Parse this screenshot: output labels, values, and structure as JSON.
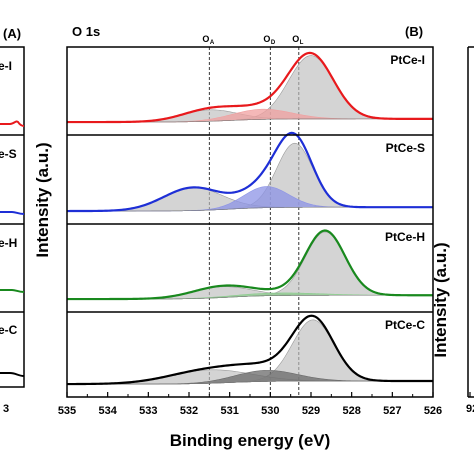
{
  "figure": {
    "left_panel": {
      "panel_letter": "(A)",
      "sample_labels": [
        "e-I",
        "e-S",
        "e-H",
        "e-C"
      ],
      "x_tick_partial": "3"
    },
    "right_panel": {
      "panel_letter": "(B)",
      "x_tick_partial": "92",
      "ylabel": "Intensity (a.u.)"
    }
  },
  "chart_data": {
    "type": "line",
    "title": "O 1s",
    "panel_letter": "(B)",
    "xlabel": "Binding energy (eV)",
    "ylabel": "Intensity (a.u.)",
    "xlim": [
      535,
      526
    ],
    "x_reversed": true,
    "x_ticks": [
      "535",
      "534",
      "533",
      "532",
      "531",
      "530",
      "529",
      "528",
      "527",
      "526"
    ],
    "y_ticks_shown": false,
    "reference_lines": [
      {
        "label_main": "O",
        "label_sub": "A",
        "x": 531.5,
        "style": "dashed"
      },
      {
        "label_main": "O",
        "label_sub": "D",
        "x": 530.0,
        "style": "dashed"
      },
      {
        "label_main": "O",
        "label_sub": "L",
        "x": 529.3,
        "style": "dashed"
      }
    ],
    "series": [
      {
        "name": "PtCe-I",
        "color": "#e8191c",
        "fill_color": "#f0a0a0",
        "baseline": 0.05,
        "scale": 0.72,
        "peaks": [
          {
            "center": 529.0,
            "fwhm": 1.3,
            "height": 1.0
          },
          {
            "center": 531.5,
            "fwhm": 1.6,
            "height": 0.18
          },
          {
            "center": 530.2,
            "fwhm": 1.7,
            "height": 0.16
          }
        ],
        "colored_component": 2
      },
      {
        "name": "PtCe-S",
        "color": "#1e2fd6",
        "fill_color": "#8c93e6",
        "baseline": 0.06,
        "scale": 0.72,
        "peaks": [
          {
            "center": 529.4,
            "fwhm": 1.05,
            "height": 1.0
          },
          {
            "center": 531.9,
            "fwhm": 1.7,
            "height": 0.36
          },
          {
            "center": 530.1,
            "fwhm": 1.3,
            "height": 0.33
          }
        ],
        "colored_component": 2
      },
      {
        "name": "PtCe-H",
        "color": "#19891e",
        "fill_color": "#8ccc8e",
        "baseline": 0.06,
        "scale": 0.72,
        "peaks": [
          {
            "center": 528.65,
            "fwhm": 1.15,
            "height": 1.0
          },
          {
            "center": 531.2,
            "fwhm": 1.7,
            "height": 0.17
          },
          {
            "center": 529.8,
            "fwhm": 2.4,
            "height": 0.04
          }
        ],
        "colored_component": 2
      },
      {
        "name": "PtCe-C",
        "color": "#000000",
        "fill_color": "#6a6a6a",
        "baseline": 0.05,
        "scale": 0.72,
        "peaks": [
          {
            "center": 528.95,
            "fwhm": 1.2,
            "height": 1.0
          },
          {
            "center": 531.5,
            "fwhm": 2.3,
            "height": 0.22
          },
          {
            "center": 530.1,
            "fwhm": 1.8,
            "height": 0.18
          }
        ],
        "colored_component": 2
      }
    ]
  }
}
